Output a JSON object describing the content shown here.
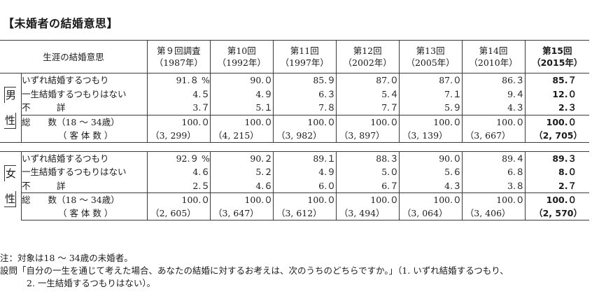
{
  "title": "【未婚者の結婚意思】",
  "header": {
    "row_label": "生涯の結婚意思",
    "columns": [
      {
        "line1": "第９回調査",
        "line2": "（1987年）",
        "bold": false
      },
      {
        "line1": "第10回",
        "line2": "（1992年）",
        "bold": false
      },
      {
        "line1": "第11回",
        "line2": "（1997年）",
        "bold": false
      },
      {
        "line1": "第12回",
        "line2": "（2002年）",
        "bold": false
      },
      {
        "line1": "第13回",
        "line2": "（2005年）",
        "bold": false
      },
      {
        "line1": "第14回",
        "line2": "（2010年）",
        "bold": false
      },
      {
        "line1": "第15回",
        "line2": "（2015年）",
        "bold": true
      }
    ]
  },
  "male": {
    "label_top": "男",
    "label_bottom": "性",
    "rows": [
      {
        "label": "いずれ結婚するつもり",
        "values": [
          "91.８ %",
          "90.０",
          "85.９",
          "87.０",
          "87.０",
          "86.３",
          "85.７"
        ]
      },
      {
        "label": "一生結婚するつもりはない",
        "values": [
          "4.５",
          "4.９",
          "6.３",
          "5.４",
          "7.１",
          "9.４",
          "12.０"
        ]
      },
      {
        "label": "不　　　詳",
        "values": [
          "3.７",
          "5.１",
          "7.８",
          "7.７",
          "5.９",
          "4.３",
          "2.３"
        ]
      }
    ],
    "total_label": "総　　数（18 ～ 34歳）",
    "total_values": [
      "100.０",
      "100.０",
      "100.０",
      "100.０",
      "100.０",
      "100.０",
      "100.０"
    ],
    "count_label": "（ 客 体 数 ）",
    "count_values": [
      "（3, 299）",
      "（4, 215）",
      "（3, 982）",
      "（3, 897）",
      "（3, 139）",
      "（3, 667）",
      "（2, 705）"
    ]
  },
  "female": {
    "label_top": "女",
    "label_bottom": "性",
    "rows": [
      {
        "label": "いずれ結婚するつもり",
        "values": [
          "92.９ %",
          "90.２",
          "89.１",
          "88.３",
          "90.０",
          "89.４",
          "89.３"
        ]
      },
      {
        "label": "一生結婚するつもりはない",
        "values": [
          "4.６",
          "5.２",
          "4.９",
          "5.０",
          "5.６",
          "6.８",
          "8.０"
        ]
      },
      {
        "label": "不　　　詳",
        "values": [
          "2.５",
          "4.６",
          "6.０",
          "6.７",
          "4.３",
          "3.８",
          "2.７"
        ]
      }
    ],
    "total_label": "総　　数（18 ～ 34歳）",
    "total_values": [
      "100.０",
      "100.０",
      "100.０",
      "100.０",
      "100.０",
      "100.０",
      "100.０"
    ],
    "count_label": "（ 客 体 数 ）",
    "count_values": [
      "（2, 605）",
      "（3, 647）",
      "（3, 612）",
      "（3, 494）",
      "（3, 064）",
      "（3, 406）",
      "（2, 570）"
    ]
  },
  "notes": {
    "note1": "注：対象は18 ～ 34歳の未婚者。",
    "note2": "設問「自分の一生を通じて考えた場合、あなたの結婚に対するお考えは、次のうちのどちらですか。」（1. いずれ結婚するつもり、",
    "note3": "2. 一生結婚するつもりはない）。"
  }
}
